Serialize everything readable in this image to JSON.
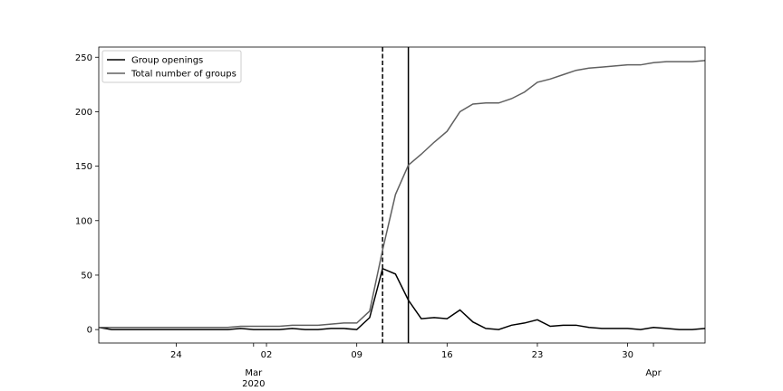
{
  "chart_data": {
    "type": "line",
    "x": [
      "2020-02-18",
      "2020-02-19",
      "2020-02-20",
      "2020-02-21",
      "2020-02-22",
      "2020-02-23",
      "2020-02-24",
      "2020-02-25",
      "2020-02-26",
      "2020-02-27",
      "2020-02-28",
      "2020-02-29",
      "2020-03-01",
      "2020-03-02",
      "2020-03-03",
      "2020-03-04",
      "2020-03-05",
      "2020-03-06",
      "2020-03-07",
      "2020-03-08",
      "2020-03-09",
      "2020-03-10",
      "2020-03-11",
      "2020-03-12",
      "2020-03-13",
      "2020-03-14",
      "2020-03-15",
      "2020-03-16",
      "2020-03-17",
      "2020-03-18",
      "2020-03-19",
      "2020-03-20",
      "2020-03-21",
      "2020-03-22",
      "2020-03-23",
      "2020-03-24",
      "2020-03-25",
      "2020-03-26",
      "2020-03-27",
      "2020-03-28",
      "2020-03-29",
      "2020-03-30",
      "2020-03-31",
      "2020-04-01",
      "2020-04-02",
      "2020-04-03",
      "2020-04-04",
      "2020-04-05"
    ],
    "series": [
      {
        "name": "Group openings",
        "color": "#000000",
        "values": [
          2,
          0,
          0,
          0,
          0,
          0,
          0,
          0,
          0,
          0,
          0,
          1,
          0,
          0,
          0,
          1,
          0,
          0,
          1,
          1,
          0,
          11,
          56,
          51,
          27,
          10,
          11,
          10,
          18,
          7,
          1,
          0,
          4,
          6,
          9,
          3,
          4,
          4,
          2,
          1,
          1,
          1,
          0,
          2,
          1,
          0,
          0,
          1
        ]
      },
      {
        "name": "Total number of groups",
        "color": "#606060",
        "values": [
          2,
          2,
          2,
          2,
          2,
          2,
          2,
          2,
          2,
          2,
          2,
          3,
          3,
          3,
          3,
          4,
          4,
          4,
          5,
          6,
          6,
          17,
          73,
          124,
          151,
          161,
          172,
          182,
          200,
          207,
          208,
          208,
          212,
          218,
          227,
          230,
          234,
          238,
          240,
          241,
          242,
          243,
          243,
          245,
          246,
          246,
          246,
          247
        ]
      }
    ],
    "xlim": [
      "2020-02-18",
      "2020-04-05"
    ],
    "xticks": [
      {
        "value": "2020-02-24",
        "label": "24"
      },
      {
        "value": "2020-03-02",
        "label": "02"
      },
      {
        "value": "2020-03-09",
        "label": "09"
      },
      {
        "value": "2020-03-16",
        "label": "16"
      },
      {
        "value": "2020-03-23",
        "label": "23"
      },
      {
        "value": "2020-03-30",
        "label": "30"
      }
    ],
    "month_ticks": [
      {
        "value": "2020-03-01",
        "label": [
          "Mar",
          "2020"
        ]
      },
      {
        "value": "2020-04-01",
        "label": [
          "Apr"
        ]
      }
    ],
    "ylim": [
      -12.35,
      259.35
    ],
    "yticks": [
      0,
      50,
      100,
      150,
      200,
      250
    ],
    "vlines": [
      {
        "x": "2020-03-11",
        "style": "dashed",
        "color": "#000000"
      },
      {
        "x": "2020-03-13",
        "style": "solid",
        "color": "#000000"
      }
    ],
    "legend": "upper left",
    "grid": false
  }
}
